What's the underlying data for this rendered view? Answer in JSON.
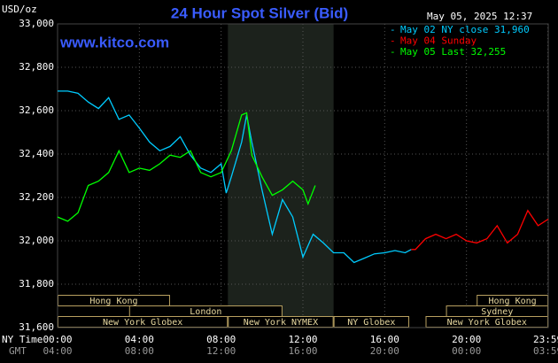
{
  "chart_data": {
    "type": "line",
    "title": "24 Hour Spot Silver (Bid)",
    "y_unit": "USD/oz",
    "timestamp": "May 05, 2025 12:37",
    "watermark": "www.kitco.com",
    "x_axis_label": "NY Time",
    "x2_axis_label": "GMT",
    "xlim": [
      0,
      24
    ],
    "ylim": [
      31600,
      33000
    ],
    "yticks": [
      {
        "value": 31600,
        "label": "31,600"
      },
      {
        "value": 31800,
        "label": "31,800"
      },
      {
        "value": 32000,
        "label": "32,000"
      },
      {
        "value": 32200,
        "label": "32,200"
      },
      {
        "value": 32400,
        "label": "32,400"
      },
      {
        "value": 32600,
        "label": "32,600"
      },
      {
        "value": 32800,
        "label": "32,800"
      },
      {
        "value": 33000,
        "label": "33,000"
      }
    ],
    "xticks": [
      {
        "value": 0,
        "label": "00:00"
      },
      {
        "value": 4,
        "label": "04:00"
      },
      {
        "value": 8,
        "label": "08:00"
      },
      {
        "value": 12,
        "label": "12:00"
      },
      {
        "value": 16,
        "label": "16:00"
      },
      {
        "value": 20,
        "label": "20:00"
      },
      {
        "value": 23.98,
        "label": "23:59"
      }
    ],
    "x2_tick_labels": [
      "04:00",
      "08:00",
      "12:00",
      "16:00",
      "20:00",
      "00:00",
      "03:59"
    ],
    "grid": true,
    "shaded_range": [
      8.33,
      13.5
    ],
    "sessions": [
      [
        {
          "name": "Hong Kong",
          "start": 0,
          "end": 5.5
        },
        {
          "name": "Hong Kong",
          "start": 20.5,
          "end": 24
        }
      ],
      [
        {
          "name": "London",
          "start": 3.5,
          "end": 11
        },
        {
          "name": "Sydney",
          "start": 19,
          "end": 24
        }
      ],
      [
        {
          "name": "New York Globex",
          "start": 0,
          "end": 8.33
        },
        {
          "name": "New York NYMEX",
          "start": 8.33,
          "end": 13.5
        },
        {
          "name": "NY Globex",
          "start": 13.5,
          "end": 17.2
        },
        {
          "name": "New York Globex",
          "start": 18,
          "end": 24
        }
      ]
    ],
    "series": [
      {
        "name": "May 02 NY close 31,960",
        "color": "#00ccff",
        "x": [
          0,
          0.5,
          1,
          1.5,
          2,
          2.5,
          3,
          3.5,
          4,
          4.5,
          5,
          5.5,
          6,
          6.5,
          7,
          7.5,
          8,
          8.25,
          8.5,
          9,
          9.25,
          9.5,
          10,
          10.5,
          11,
          11.5,
          12,
          12.5,
          13,
          13.5,
          14,
          14.5,
          15,
          15.5,
          16,
          16.5,
          17,
          17.3
        ],
        "values": [
          32690,
          32690,
          32680,
          32640,
          32610,
          32660,
          32560,
          32580,
          32520,
          32455,
          32415,
          32435,
          32480,
          32395,
          32335,
          32315,
          32355,
          32220,
          32295,
          32455,
          32580,
          32455,
          32235,
          32030,
          32190,
          32110,
          31925,
          32030,
          31990,
          31945,
          31945,
          31900,
          31920,
          31940,
          31945,
          31955,
          31945,
          31960
        ]
      },
      {
        "name": "May 04 Sunday",
        "color": "#ff0000",
        "x": [
          17.3,
          17.5,
          18,
          18.5,
          19,
          19.5,
          20,
          20.5,
          21,
          21.5,
          22,
          22.5,
          23,
          23.5,
          24
        ],
        "values": [
          31960,
          31960,
          32010,
          32030,
          32010,
          32030,
          32000,
          31990,
          32010,
          32070,
          31990,
          32030,
          32140,
          32070,
          32100
        ]
      },
      {
        "name": "May 05 Last 32,255",
        "color": "#00ff00",
        "x": [
          0,
          0.5,
          1,
          1.5,
          2,
          2.5,
          3,
          3.5,
          4,
          4.5,
          5,
          5.5,
          6,
          6.5,
          7,
          7.5,
          8,
          8.5,
          9,
          9.25,
          9.5,
          10,
          10.5,
          11,
          11.5,
          12,
          12.25,
          12.6
        ],
        "values": [
          32110,
          32090,
          32130,
          32255,
          32275,
          32315,
          32415,
          32315,
          32335,
          32325,
          32355,
          32395,
          32385,
          32415,
          32315,
          32295,
          32315,
          32415,
          32580,
          32590,
          32395,
          32295,
          32210,
          32235,
          32275,
          32235,
          32170,
          32255
        ]
      }
    ]
  }
}
